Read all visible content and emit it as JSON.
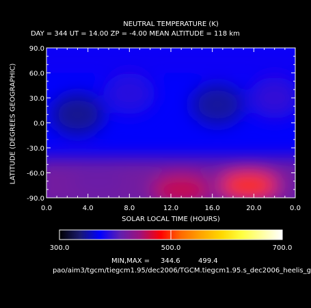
{
  "chart_data": {
    "type": "heatmap",
    "title": "NEUTRAL TEMPERATURE (K)",
    "subtitle": "DAY = 344   UT = 14.00   ZP =   -4.00   MEAN ALTITUDE = 118 km",
    "xlabel": "SOLAR LOCAL TIME (HOURS)",
    "ylabel": "LATITUDE (DEGREES GEOGRAPHIC)",
    "xlim": [
      0,
      24
    ],
    "ylim": [
      -90,
      90
    ],
    "xticks": [
      "0.0",
      "4.0",
      "8.0",
      "12.0",
      "16.0",
      "20.0",
      "0.0"
    ],
    "yticks": [
      "90.0",
      "60.0",
      "30.0",
      "0.0",
      "-30.0",
      "-60.0",
      "-90.0"
    ],
    "colorbar": {
      "min": 300.0,
      "max": 700.0,
      "tick_labels": [
        "300.0",
        "500.0",
        "700.0"
      ],
      "colors": [
        "#000000",
        "#1a1a6e",
        "#0000ff",
        "#6020b0",
        "#a0107a",
        "#ff0000",
        "#ff6a00",
        "#ffa500",
        "#ffd800",
        "#ffff40",
        "#ffffa0",
        "#ffffff"
      ]
    },
    "min": 344.6,
    "max": 499.4,
    "minmax_label": "MIN,MAX =",
    "features": [
      {
        "lt": 3.0,
        "lat": 10,
        "value": 345
      },
      {
        "lt": 16.5,
        "lat": 22,
        "value": 348
      },
      {
        "lt": 8.0,
        "lat": 35,
        "value": 388
      },
      {
        "lt": 22.0,
        "lat": 30,
        "value": 392
      },
      {
        "lt": 19.5,
        "lat": -75,
        "value": 499
      },
      {
        "lt": 13.0,
        "lat": -80,
        "value": 460
      },
      {
        "lt": 5.0,
        "lat": -70,
        "value": 415
      }
    ]
  },
  "footer_path": "pao/aim3/tgcm/tiegcm1.95/dec2006/TGCM.tiegcm1.95.s_dec2006_heelis_g"
}
